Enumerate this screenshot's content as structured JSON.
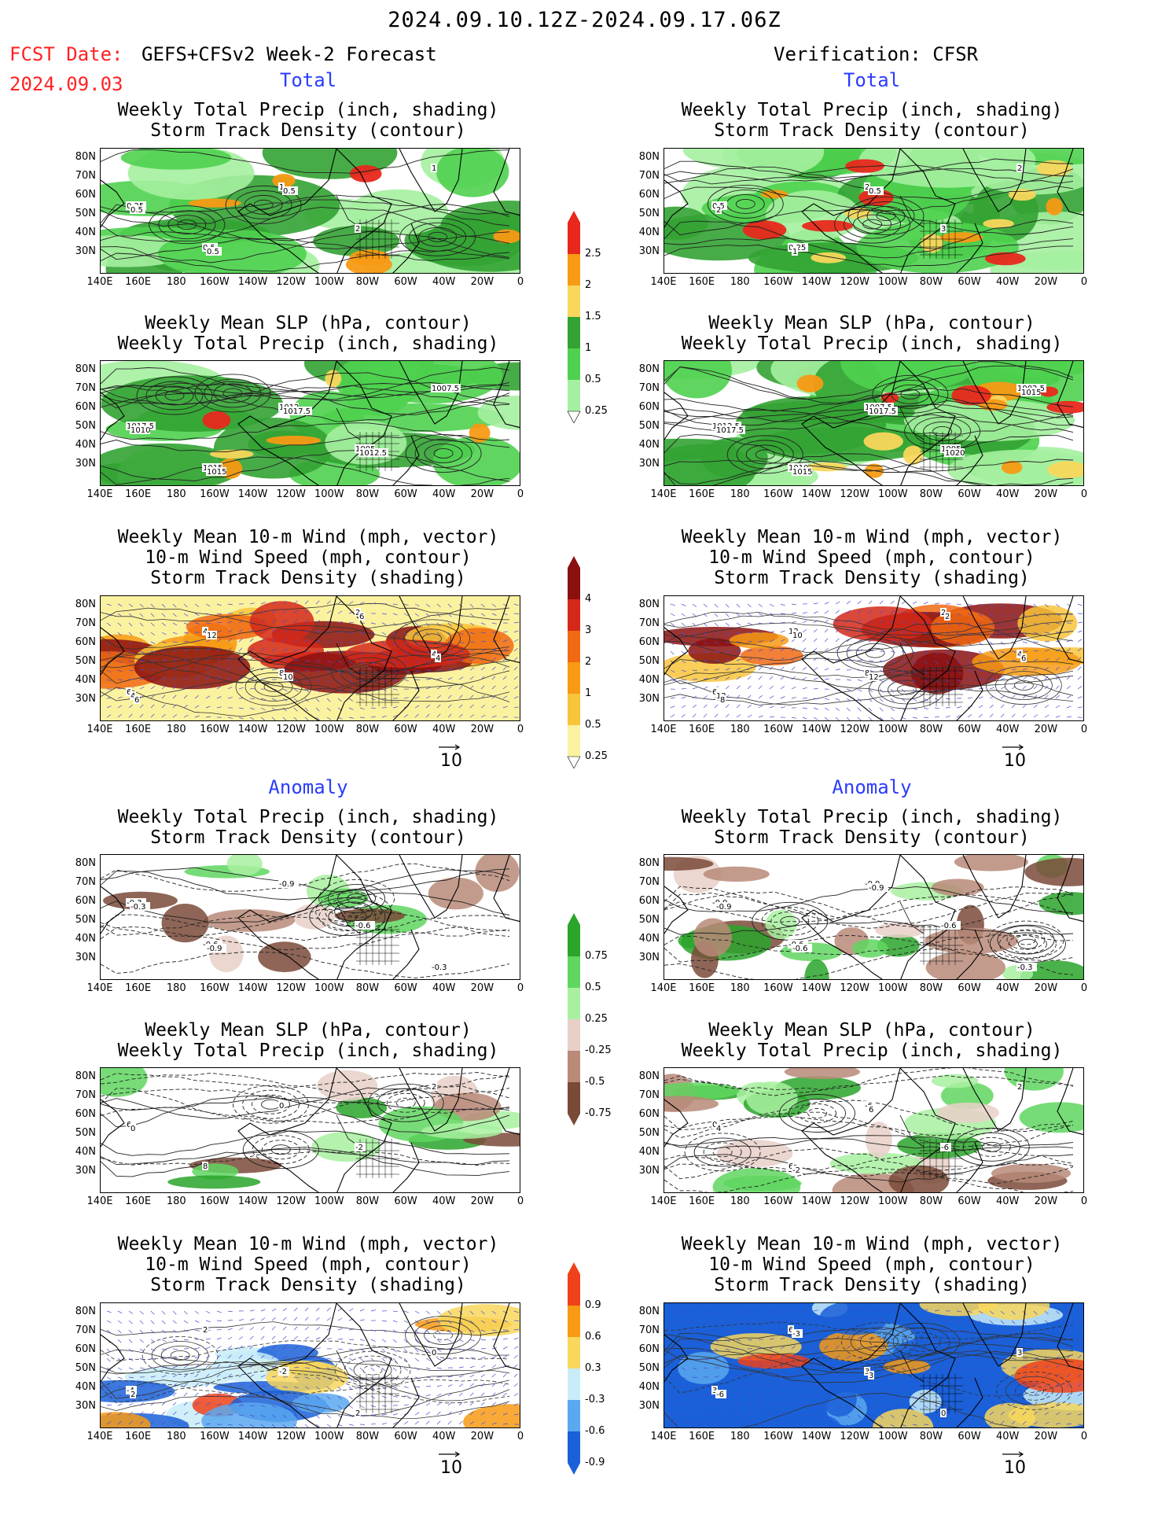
{
  "header": {
    "title": "2024.09.10.12Z-2024.09.17.06Z",
    "fcst_label": "FCST Date:",
    "fcst_model": "GEFS+CFSv2 Week-2 Forecast",
    "fcst_date": "2024.09.03",
    "verification": "Verification: CFSR"
  },
  "sections": {
    "total": "Total",
    "anomaly": "Anomaly"
  },
  "panel_titles": {
    "precip_storm": [
      "Weekly Total Precip (inch, shading)",
      "Storm Track Density (contour)"
    ],
    "slp_precip": [
      "Weekly Mean SLP (hPa, contour)",
      "Weekly Total Precip (inch, shading)"
    ],
    "wind_storm": [
      "Weekly Mean 10-m Wind (mph, vector)",
      "10-m Wind Speed (mph, contour)",
      "Storm Track Density (shading)"
    ]
  },
  "axes": {
    "lat_labels": [
      "80N",
      "70N",
      "60N",
      "50N",
      "40N",
      "30N"
    ],
    "lon_labels": [
      "140E",
      "160E",
      "180",
      "160W",
      "140W",
      "120W",
      "100W",
      "80W",
      "60W",
      "40W",
      "20W",
      "0"
    ]
  },
  "vector_ref": "10",
  "colorbars": {
    "precip_total": {
      "labels": [
        "2.5",
        "2",
        "1.5",
        "1",
        "0.5",
        "0.25"
      ],
      "colors": [
        "#e8281c",
        "#f79a14",
        "#f8d75c",
        "#33a333",
        "#4fd14f",
        "#a5f0a0"
      ]
    },
    "storm_total": {
      "labels": [
        "4",
        "3",
        "2",
        "1",
        "0.5",
        "0.25"
      ],
      "colors": [
        "#8b1010",
        "#d4281a",
        "#f06a14",
        "#f79a14",
        "#f8c43a",
        "#fbf2a0"
      ]
    },
    "precip_anom": {
      "labels": [
        "0.75",
        "0.5",
        "0.25",
        "-0.25",
        "-0.5",
        "-0.75"
      ],
      "colors": [
        "#2aa52a",
        "#5fd65f",
        "#a8f0a0",
        "#e8d0c8",
        "#b98a78",
        "#7a4a38"
      ]
    },
    "storm_anom": {
      "labels": [
        "0.9",
        "0.6",
        "0.3",
        "-0.3",
        "-0.6",
        "-0.9"
      ],
      "colors": [
        "#f0421a",
        "#f79a14",
        "#f8d75c",
        "#c8ecf8",
        "#5aa8f0",
        "#1a60d8"
      ]
    }
  },
  "contour_labels": {
    "fc_total_precip": [
      "0.25",
      "0.5",
      "1",
      "2",
      "1",
      "0.5",
      "0.5",
      "0.5"
    ],
    "vf_total_precip": [
      "0.5",
      "0.25",
      "2",
      "3",
      "2",
      "2",
      "1",
      "0.5"
    ],
    "fc_total_slp": [
      "1017.5",
      "1015",
      "1012",
      "1005",
      "1007.5",
      "1010",
      "1015",
      "1017.5",
      "1012.5"
    ],
    "vf_total_slp": [
      "1012.5",
      "1010",
      "1007.5",
      "1005",
      "1002.5",
      "1017.5",
      "1015",
      "1017.5",
      "1020",
      "1015"
    ],
    "fc_total_wind": [
      "6",
      "4",
      "8",
      "2",
      "4",
      "4",
      "12",
      "10",
      "6",
      "4",
      "6"
    ],
    "vf_total_wind": [
      "6",
      "12",
      "8",
      "2",
      "4",
      "12",
      "10",
      "12",
      "2",
      "6",
      "8"
    ],
    "fc_anom_precip": [
      "-0.3",
      "-0.6",
      "-0.9",
      "-0.6",
      "-0.3",
      "-0.3",
      "-0.9"
    ],
    "vf_anom_precip": [
      "-0.9",
      "-0.6",
      "-0.9",
      "-0.6",
      "-0.3",
      "-0.9",
      "-0.6",
      "-0.9"
    ],
    "fc_anom_slp": [
      "6",
      "8",
      "0",
      "-2",
      "2",
      "0"
    ],
    "vf_anom_slp": [
      "0",
      "6",
      "-6",
      "-6",
      "2",
      "4",
      "-2",
      "6"
    ],
    "fc_anom_wind": [
      "-4",
      "2",
      "-2",
      "2",
      "0",
      "2"
    ],
    "vf_anom_wind": [
      "3",
      "6",
      "3",
      "0",
      "3",
      "-6",
      "-3",
      "3"
    ]
  }
}
